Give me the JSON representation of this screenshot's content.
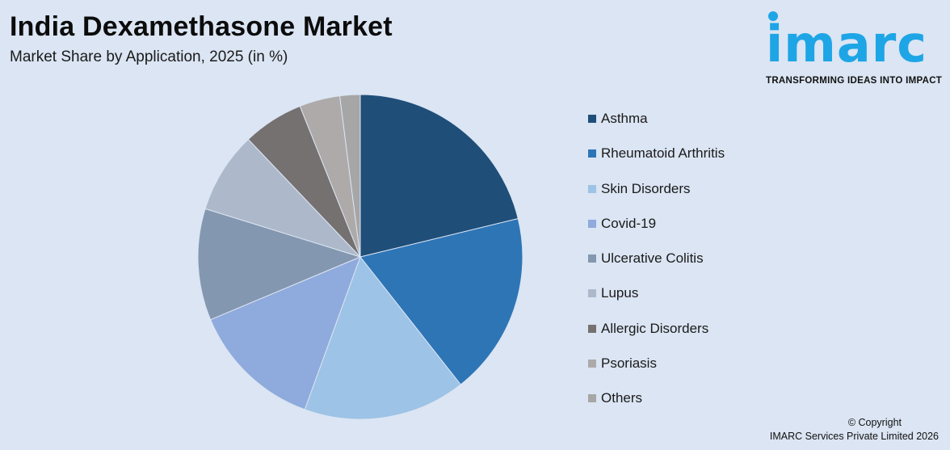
{
  "header": {
    "title": "India Dexamethasone Market",
    "subtitle": "Market Share by Application, 2025 (in %)"
  },
  "logo": {
    "word": "imarc",
    "tagline": "TRANSFORMING IDEAS INTO IMPACT",
    "color": "#1ea5e6"
  },
  "footer": {
    "copyright": "© Copyright",
    "company": "IMARC Services Private Limited 2026"
  },
  "chart_data": {
    "type": "pie",
    "title": "India Dexamethasone Market",
    "subtitle": "Market Share by Application, 2025 (in %)",
    "legend_position": "right",
    "slices": [
      {
        "label": "Asthma",
        "value": 21.0,
        "color": "#1f4e79"
      },
      {
        "label": "Rheumatoid Arthritis",
        "value": 18.0,
        "color": "#2e75b6"
      },
      {
        "label": "Skin Disorders",
        "value": 16.0,
        "color": "#9dc3e6"
      },
      {
        "label": "Covid-19",
        "value": 13.0,
        "color": "#8faadc"
      },
      {
        "label": "Ulcerative Colitis",
        "value": 11.0,
        "color": "#8497b0"
      },
      {
        "label": "Lupus",
        "value": 8.0,
        "color": "#adb9ca"
      },
      {
        "label": "Allergic Disorders",
        "value": 6.0,
        "color": "#767171"
      },
      {
        "label": "Psoriasis",
        "value": 4.0,
        "color": "#aeaaaa"
      },
      {
        "label": "Others",
        "value": 2.0,
        "color": "#a6a6a6"
      }
    ]
  }
}
